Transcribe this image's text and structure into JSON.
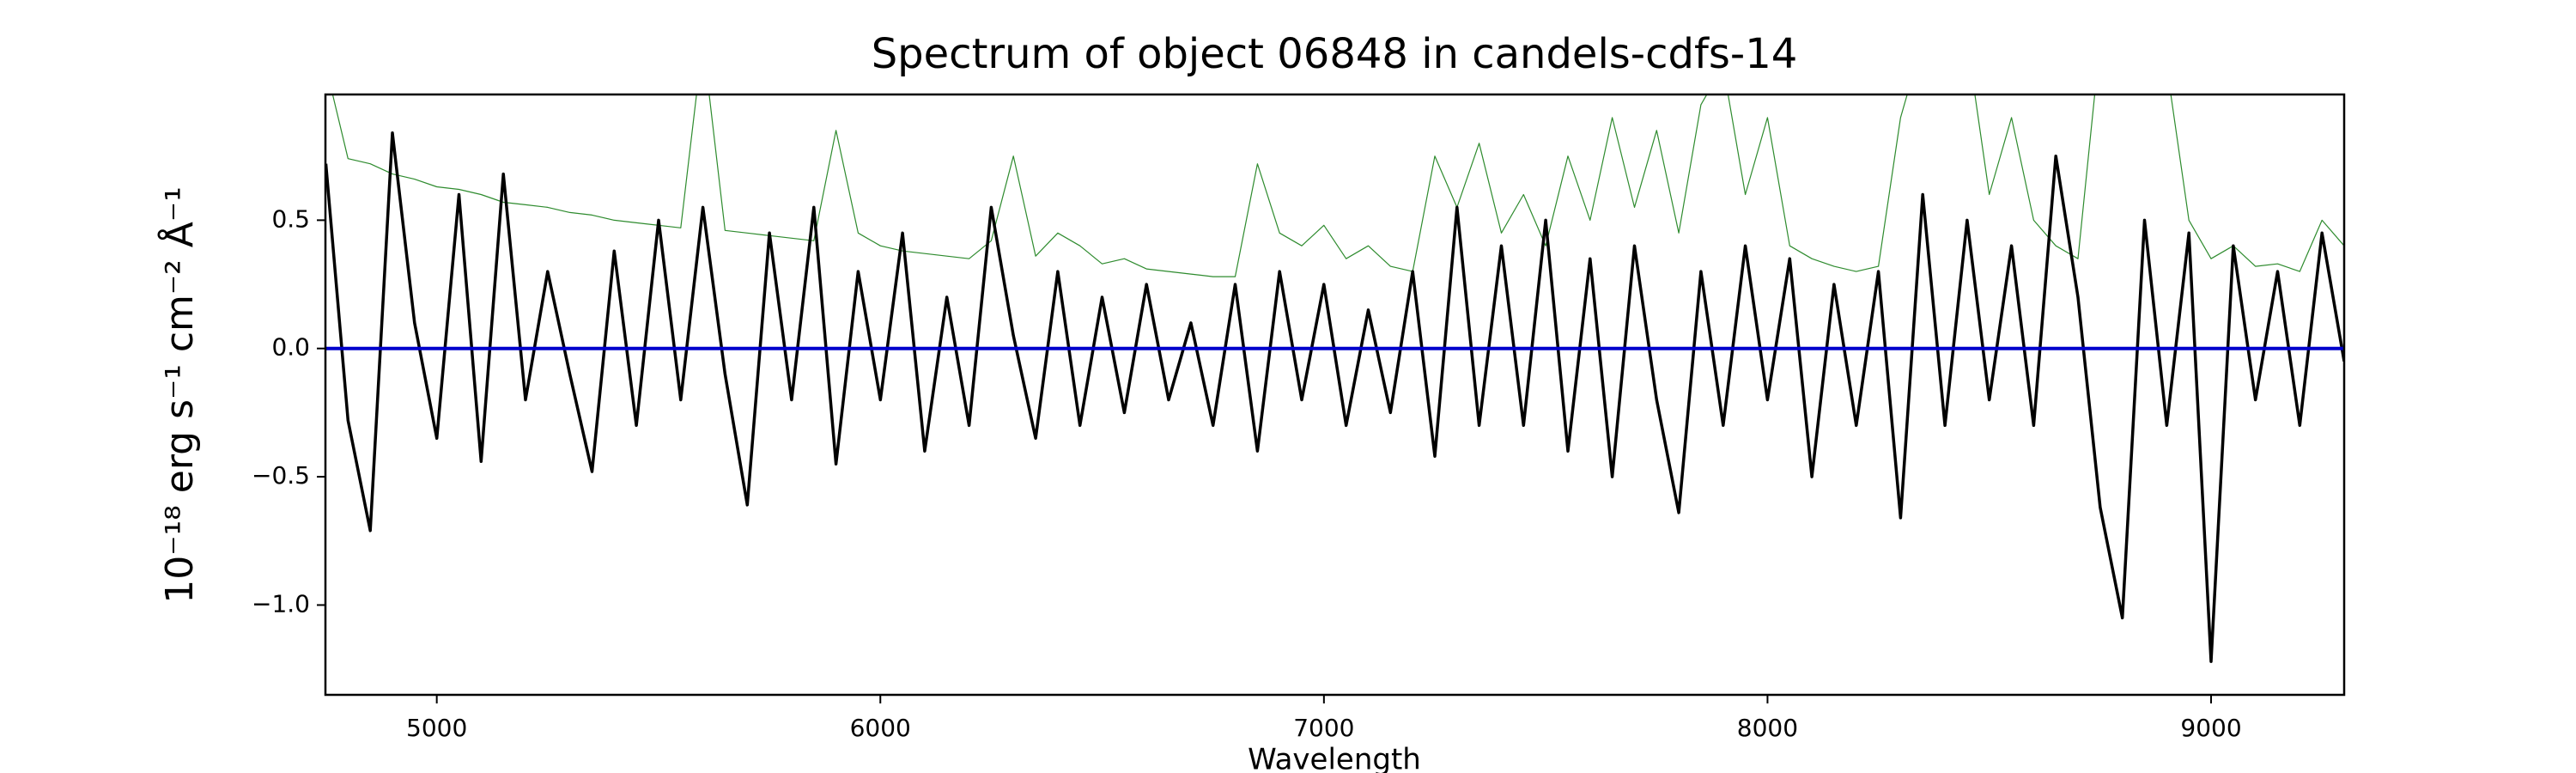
{
  "chart_data": {
    "type": "line",
    "title": "Spectrum of object 06848 in candels-cdfs-14",
    "xlabel": "Wavelength",
    "ylabel": "10⁻¹⁸ erg s⁻¹ cm⁻² Å⁻¹",
    "x": [
      4750,
      4800,
      4850,
      4900,
      4950,
      5000,
      5050,
      5100,
      5150,
      5200,
      5250,
      5300,
      5350,
      5400,
      5450,
      5500,
      5550,
      5600,
      5650,
      5700,
      5750,
      5800,
      5850,
      5900,
      5950,
      6000,
      6050,
      6100,
      6150,
      6200,
      6250,
      6300,
      6350,
      6400,
      6450,
      6500,
      6550,
      6600,
      6650,
      6700,
      6750,
      6800,
      6850,
      6900,
      6950,
      7000,
      7050,
      7100,
      7150,
      7200,
      7250,
      7300,
      7350,
      7400,
      7450,
      7500,
      7550,
      7600,
      7650,
      7700,
      7750,
      7800,
      7850,
      7900,
      7950,
      8000,
      8050,
      8100,
      8150,
      8200,
      8250,
      8300,
      8350,
      8400,
      8450,
      8500,
      8550,
      8600,
      8650,
      8700,
      8750,
      8800,
      8850,
      8900,
      8950,
      9000,
      9050,
      9100,
      9150,
      9200,
      9250,
      9300
    ],
    "series": [
      {
        "color": "#2e8b2e",
        "width": 1.2,
        "values": [
          1.1,
          0.74,
          0.72,
          0.68,
          0.66,
          0.63,
          0.62,
          0.6,
          0.57,
          0.56,
          0.55,
          0.53,
          0.52,
          0.5,
          0.49,
          0.48,
          0.47,
          1.2,
          0.46,
          0.45,
          0.44,
          0.43,
          0.42,
          0.85,
          0.45,
          0.4,
          0.38,
          0.37,
          0.36,
          0.35,
          0.42,
          0.75,
          0.36,
          0.45,
          0.4,
          0.33,
          0.35,
          0.31,
          0.3,
          0.29,
          0.28,
          0.28,
          0.72,
          0.45,
          0.4,
          0.48,
          0.35,
          0.4,
          0.32,
          0.3,
          0.75,
          0.55,
          0.8,
          0.45,
          0.6,
          0.4,
          0.75,
          0.5,
          0.9,
          0.55,
          0.85,
          0.45,
          0.95,
          1.1,
          0.6,
          0.9,
          0.4,
          0.35,
          0.32,
          0.3,
          0.32,
          0.9,
          1.2,
          1.1,
          1.2,
          0.6,
          0.9,
          0.5,
          0.4,
          0.35,
          1.2,
          1.3,
          1.2,
          1.1,
          0.5,
          0.35,
          0.4,
          0.32,
          0.33,
          0.3,
          0.5,
          0.4
        ]
      },
      {
        "color": "#000000",
        "width": 3.5,
        "values": [
          0.72,
          -0.28,
          -0.71,
          0.84,
          0.1,
          -0.35,
          0.6,
          -0.44,
          0.68,
          -0.2,
          0.3,
          -0.1,
          -0.48,
          0.38,
          -0.3,
          0.5,
          -0.2,
          0.55,
          -0.1,
          -0.61,
          0.45,
          -0.2,
          0.55,
          -0.45,
          0.3,
          -0.2,
          0.45,
          -0.4,
          0.2,
          -0.3,
          0.55,
          0.05,
          -0.35,
          0.3,
          -0.3,
          0.2,
          -0.25,
          0.25,
          -0.2,
          0.1,
          -0.3,
          0.25,
          -0.4,
          0.3,
          -0.2,
          0.25,
          -0.3,
          0.15,
          -0.25,
          0.3,
          -0.42,
          0.55,
          -0.3,
          0.4,
          -0.3,
          0.5,
          -0.4,
          0.35,
          -0.5,
          0.4,
          -0.2,
          -0.64,
          0.3,
          -0.3,
          0.4,
          -0.2,
          0.35,
          -0.5,
          0.25,
          -0.3,
          0.3,
          -0.66,
          0.6,
          -0.3,
          0.5,
          -0.2,
          0.4,
          -0.3,
          0.75,
          0.2,
          -0.62,
          -1.05,
          0.5,
          -0.3,
          0.45,
          -1.22,
          0.4,
          -0.2,
          0.3,
          -0.3,
          0.45,
          -0.05
        ]
      },
      {
        "color": "#0000cc",
        "width": 4,
        "values": [
          0,
          0,
          0,
          0,
          0,
          0,
          0,
          0,
          0,
          0,
          0,
          0,
          0,
          0,
          0,
          0,
          0,
          0,
          0,
          0,
          0,
          0,
          0,
          0,
          0,
          0,
          0,
          0,
          0,
          0,
          0,
          0,
          0,
          0,
          0,
          0,
          0,
          0,
          0,
          0,
          0,
          0,
          0,
          0,
          0,
          0,
          0,
          0,
          0,
          0,
          0,
          0,
          0,
          0,
          0,
          0,
          0,
          0,
          0,
          0,
          0,
          0,
          0,
          0,
          0,
          0,
          0,
          0,
          0,
          0,
          0,
          0,
          0,
          0,
          0,
          0,
          0,
          0,
          0,
          0,
          0,
          0,
          0,
          0,
          0,
          0,
          0,
          0,
          0,
          0,
          0,
          0
        ]
      }
    ],
    "xlim": [
      4749,
      9300
    ],
    "ylim": [
      -1.35,
      0.99
    ],
    "xticks": [
      5000,
      6000,
      7000,
      8000,
      9000
    ],
    "yticks": [
      {
        "value": -1.0,
        "label": "−1.0"
      },
      {
        "value": -0.5,
        "label": "−0.5"
      },
      {
        "value": 0.0,
        "label": "0.0"
      },
      {
        "value": 0.5,
        "label": "0.5"
      }
    ],
    "grid": false
  }
}
